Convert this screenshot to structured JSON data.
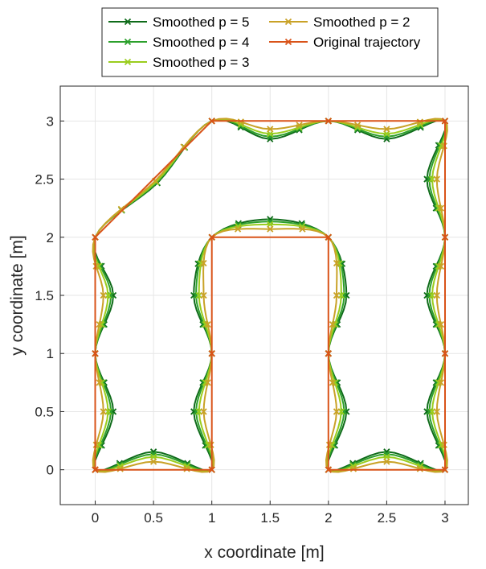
{
  "chart_data": {
    "type": "line",
    "xlabel": "x coordinate [m]",
    "ylabel": "y coordinate [m]",
    "xlim": [
      -0.3,
      3.2
    ],
    "ylim": [
      -0.3,
      3.3
    ],
    "xticks": [
      0,
      0.5,
      1,
      1.5,
      2,
      2.5,
      3
    ],
    "xtick_labels": [
      "0",
      "0.5",
      "1",
      "1.5",
      "2",
      "2.5",
      "3"
    ],
    "yticks": [
      0,
      0.5,
      1,
      1.5,
      2,
      2.5,
      3
    ],
    "ytick_labels": [
      "0",
      "0.5",
      "1",
      "1.5",
      "2",
      "2.5",
      "3"
    ],
    "grid": true,
    "legend_position": "top",
    "series": [
      {
        "name": "Smoothed p = 5",
        "color": "#0f6b1a",
        "marker": "x",
        "bulge": 0.155
      },
      {
        "name": "Smoothed p = 4",
        "color": "#2ca02c",
        "marker": "x",
        "bulge": 0.135
      },
      {
        "name": "Smoothed p = 3",
        "color": "#9acd1e",
        "marker": "x",
        "bulge": 0.11
      },
      {
        "name": "Smoothed p = 2",
        "color": "#c9a227",
        "marker": "x",
        "bulge": 0.07
      },
      {
        "name": "Original trajectory",
        "color": "#d95319",
        "marker": "x",
        "x": [
          0,
          0,
          0,
          1,
          2,
          3,
          3,
          3,
          3,
          2,
          2,
          2,
          1,
          1,
          1,
          0
        ],
        "y": [
          0,
          1,
          2,
          3,
          3,
          3,
          2,
          1,
          0,
          0,
          1,
          2,
          2,
          1,
          0,
          0
        ]
      }
    ],
    "legend_order": [
      "Smoothed p = 5",
      "Smoothed p = 2",
      "Smoothed p = 4",
      "Original trajectory",
      "Smoothed p = 3"
    ]
  }
}
